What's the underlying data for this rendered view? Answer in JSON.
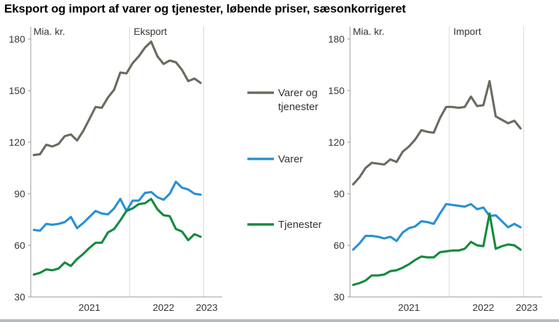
{
  "title": "Eksport og import af varer og tjenester, løbende priser, sæsonkorrigeret",
  "colors": {
    "varer_og_tjenester": "#6a6a5f",
    "varer": "#2990d6",
    "tjenester": "#158a3d",
    "grid": "#d9d9d9",
    "axis": "#999999"
  },
  "legend": [
    {
      "series": "varer_og_tjenester",
      "lines": [
        "Varer og",
        "tjenester"
      ]
    },
    {
      "series": "varer",
      "lines": [
        "Varer"
      ]
    },
    {
      "series": "tjenester",
      "lines": [
        "Tjenester"
      ]
    }
  ],
  "chart_data": [
    {
      "type": "line",
      "title": "Eksport",
      "ylabel": "Mia. kr.",
      "ylim": [
        30,
        180
      ],
      "yticks": [
        30,
        60,
        90,
        120,
        150,
        180
      ],
      "x_period": "monthly",
      "x_range": [
        "2020-09",
        "2023-03"
      ],
      "year_labels": [
        {
          "label": "2021",
          "month": "2021-06"
        },
        {
          "label": "2022",
          "month": "2022-06"
        },
        {
          "label": "2023",
          "month": "2023-01"
        }
      ],
      "year_dividers": [
        "2021-12",
        "2022-12"
      ],
      "grid": "vertical dividers at year boundaries",
      "series": [
        {
          "key": "varer_og_tjenester",
          "name": "Varer og tjenester",
          "values": [
            112.5,
            113,
            118.5,
            117.5,
            119,
            123.5,
            124.5,
            121,
            126.5,
            133.5,
            140.5,
            140,
            146,
            150.5,
            160.5,
            160,
            166,
            170,
            175,
            178.5,
            170,
            165.5,
            167.5,
            166.5,
            162,
            155.5,
            157,
            154.5
          ]
        },
        {
          "key": "varer",
          "name": "Varer",
          "values": [
            69,
            68.5,
            72.5,
            72,
            72.5,
            73.5,
            76.5,
            70,
            73,
            76.5,
            80,
            78.5,
            78,
            81.5,
            87,
            80,
            86,
            86,
            90.5,
            91,
            88,
            86.5,
            90,
            97,
            93.5,
            92.5,
            90,
            89.5
          ]
        },
        {
          "key": "tjenester",
          "name": "Tjenester",
          "values": [
            43,
            44,
            46,
            45.5,
            46.5,
            50,
            48,
            52,
            55,
            58.5,
            61.5,
            61.5,
            67.5,
            69.5,
            74.5,
            80,
            81.5,
            84,
            84.5,
            87,
            81,
            77.5,
            77,
            69.5,
            68,
            63,
            66.5,
            65
          ]
        }
      ]
    },
    {
      "type": "line",
      "title": "Import",
      "ylabel": "Mia. kr.",
      "ylim": [
        30,
        180
      ],
      "yticks": [
        30,
        60,
        90,
        120,
        150,
        180
      ],
      "x_period": "monthly",
      "x_range": [
        "2020-09",
        "2023-03"
      ],
      "year_labels": [
        {
          "label": "2021",
          "month": "2021-06"
        },
        {
          "label": "2022",
          "month": "2022-06"
        },
        {
          "label": "2023",
          "month": "2023-01"
        }
      ],
      "year_dividers": [
        "2021-12",
        "2022-12"
      ],
      "grid": "vertical dividers at year boundaries",
      "series": [
        {
          "key": "varer_og_tjenester",
          "name": "Varer og tjenester",
          "values": [
            95.5,
            99.5,
            105,
            108,
            107.5,
            107,
            110,
            108.5,
            114.5,
            117.5,
            121.5,
            127,
            126,
            125.5,
            134,
            140.5,
            140.5,
            140,
            140.5,
            146.5,
            141,
            141.5,
            155.5,
            135,
            133,
            131,
            132.5,
            128
          ]
        },
        {
          "key": "varer",
          "name": "Varer",
          "values": [
            57.5,
            61,
            65.5,
            65.5,
            65,
            64,
            65,
            62.5,
            67.5,
            70,
            71,
            74,
            73.5,
            72.5,
            78.5,
            84,
            83.5,
            83,
            82.5,
            84,
            81,
            82,
            77,
            77.5,
            74,
            70.5,
            72.5,
            70.5
          ]
        },
        {
          "key": "tjenester",
          "name": "Tjenester",
          "values": [
            37,
            38,
            39.5,
            42.5,
            42.5,
            43,
            45,
            45.5,
            47,
            49,
            51.5,
            53.5,
            53,
            53,
            56,
            56.5,
            57,
            57,
            58,
            62,
            60,
            59.5,
            78.5,
            58,
            59.5,
            60.5,
            60,
            57.5
          ]
        }
      ]
    }
  ]
}
